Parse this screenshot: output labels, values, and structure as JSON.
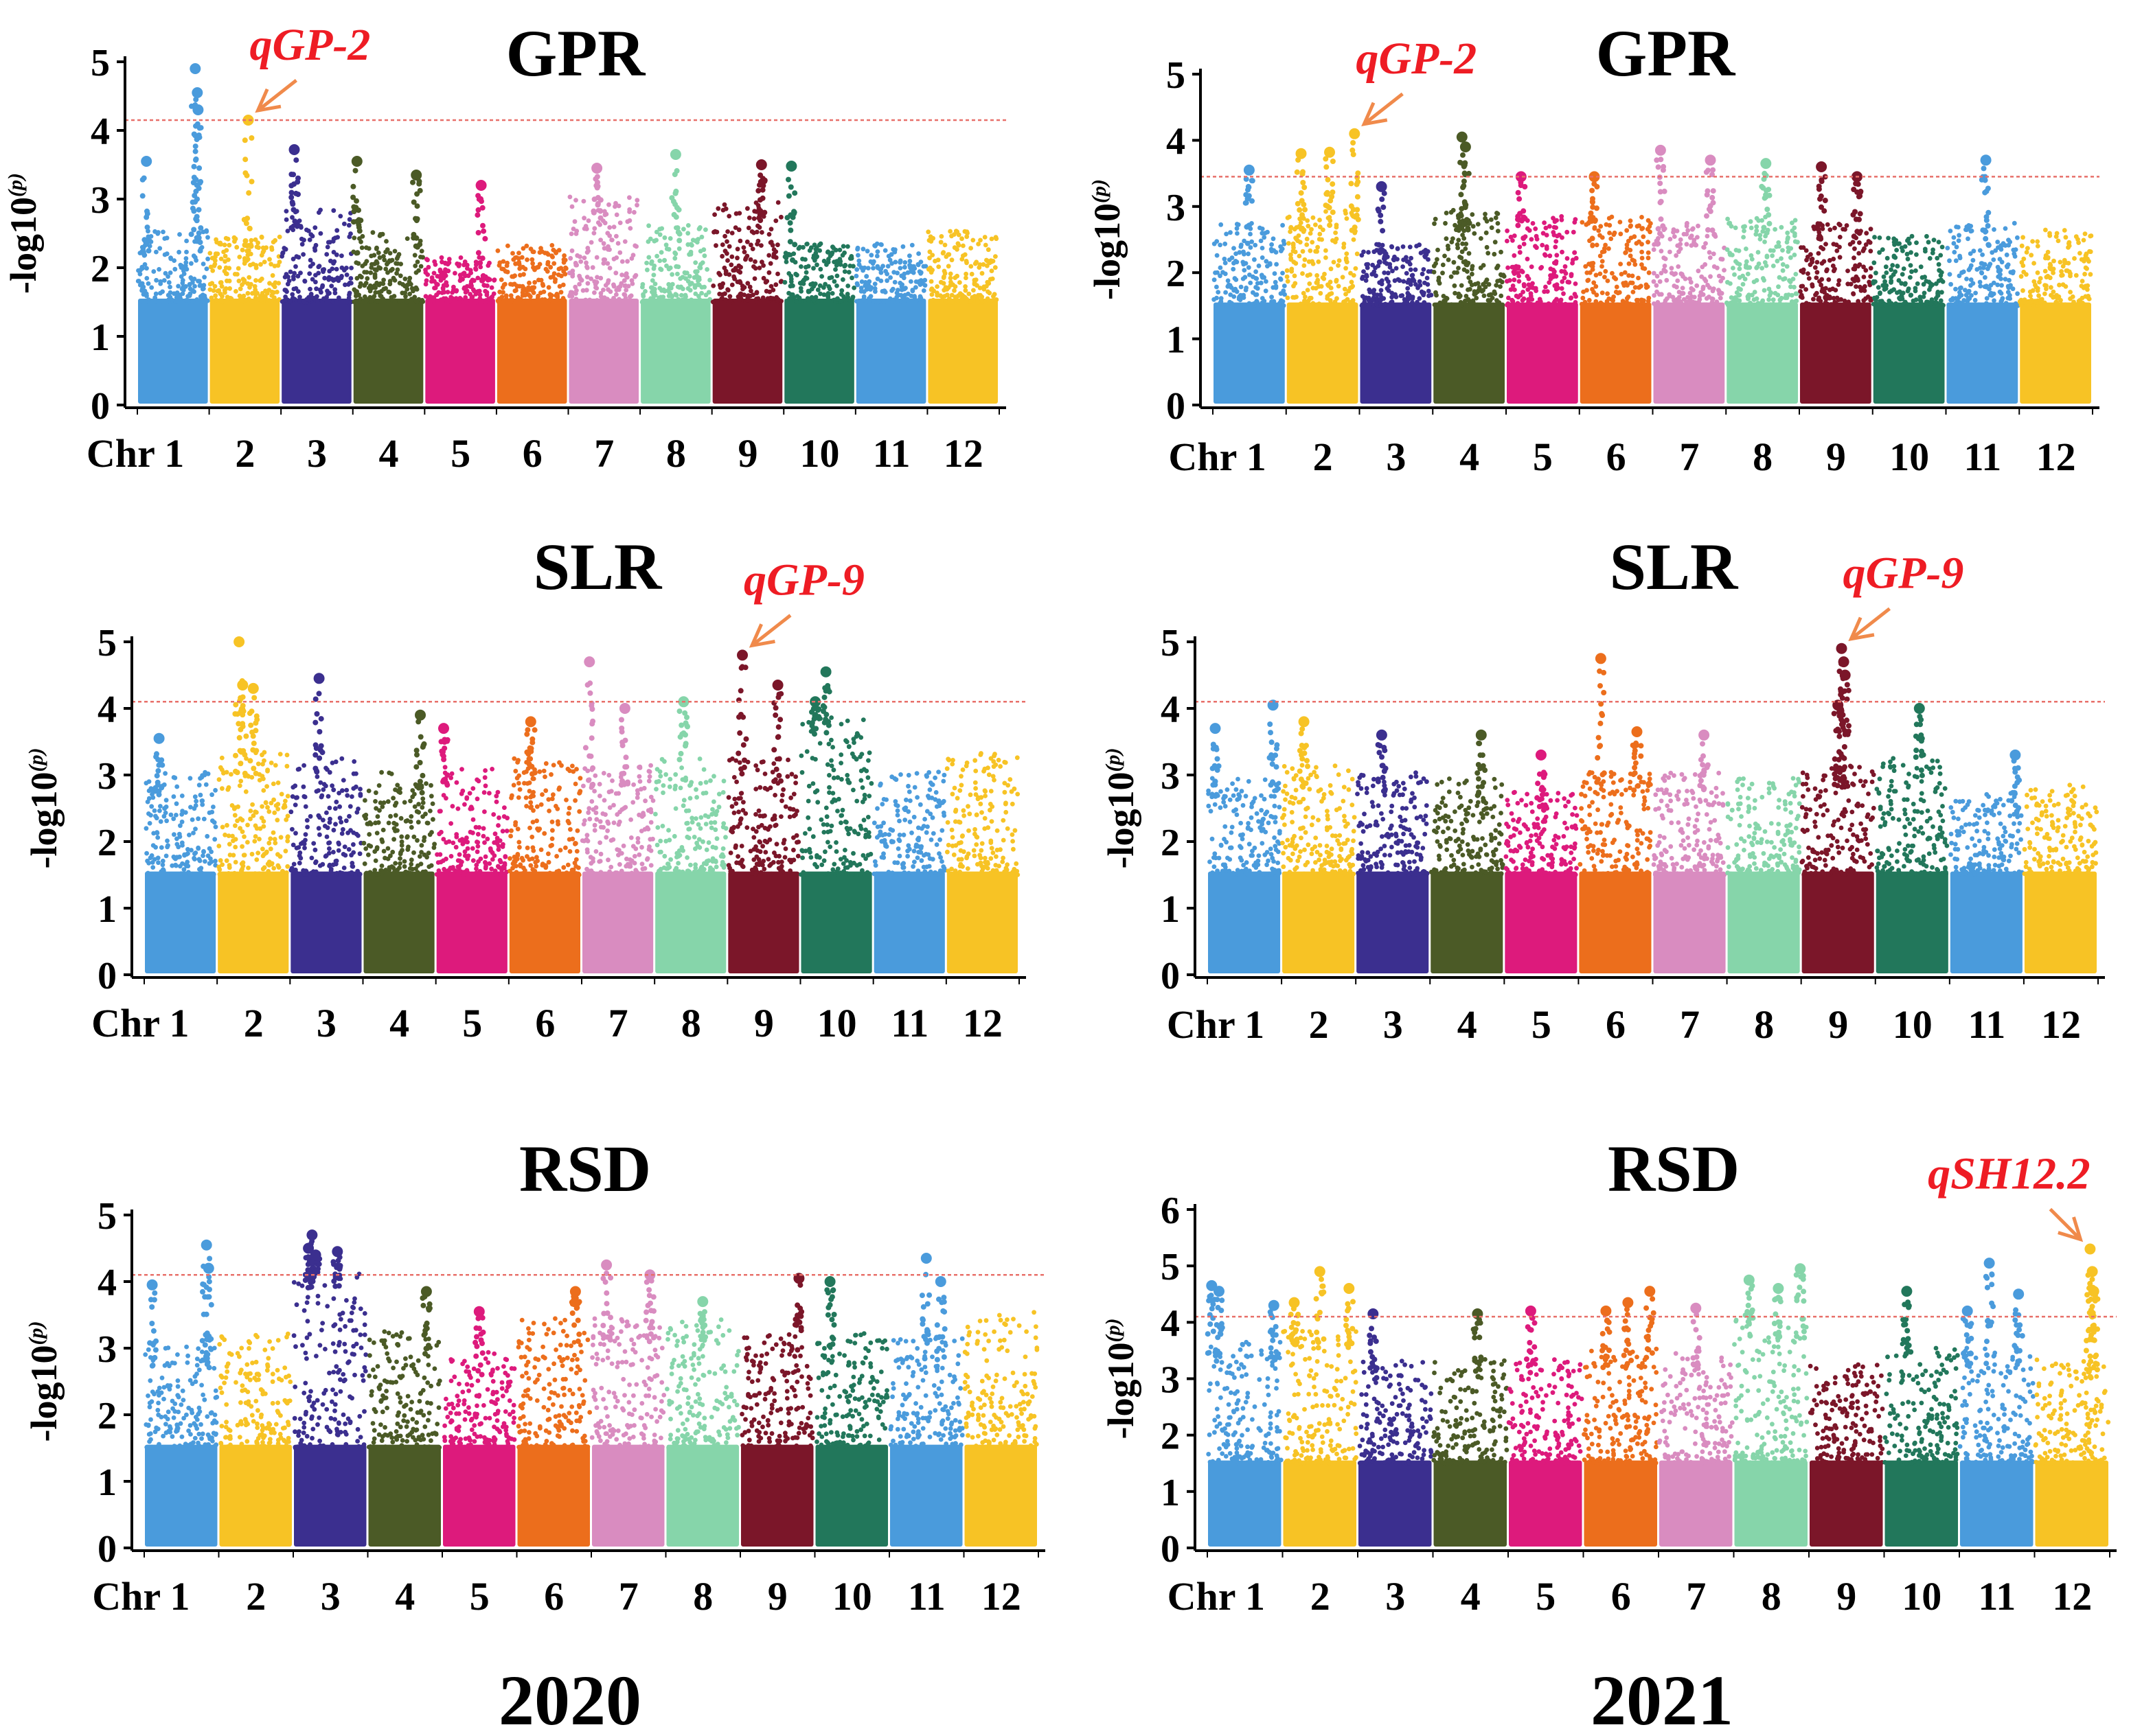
{
  "figure": {
    "years": [
      "2020",
      "2021"
    ]
  },
  "colors": {
    "chromosomes": [
      "#4a9bdc",
      "#f7c325",
      "#3b2f8f",
      "#4b5a26",
      "#dd1a7c",
      "#ec6e1c",
      "#d98cc0",
      "#86d5aa",
      "#7b1629",
      "#22775b",
      "#4a9bdc",
      "#f7c325"
    ],
    "threshold": "#e8706a",
    "arrow": "#f08a4b",
    "qtl_text": "#ee1c24"
  },
  "chart_data": [
    {
      "type": "scatter",
      "subtype": "manhattan",
      "title": "GPR",
      "year": "2020",
      "ylabel": "-log10(p)",
      "ylabel_base": "-log10",
      "ylabel_sup": "(p)",
      "ylim": [
        0,
        5
      ],
      "yticks": [
        "0",
        "1",
        "2",
        "3",
        "4",
        "5"
      ],
      "xlabel_prefix": "Chr",
      "chromosomes": [
        "1",
        "2",
        "3",
        "4",
        "5",
        "6",
        "7",
        "8",
        "9",
        "10",
        "11",
        "12"
      ],
      "base_levels": [
        2.2,
        2.1,
        2.5,
        2.2,
        1.8,
        2.0,
        2.7,
        2.3,
        2.6,
        2.0,
        2.0,
        2.2
      ],
      "threshold": 4.15,
      "peaks": [
        {
          "chr": 1,
          "pos": 0.12,
          "value": 3.55
        },
        {
          "chr": 1,
          "pos": 0.82,
          "value": 4.9
        },
        {
          "chr": 1,
          "pos": 0.85,
          "value": 4.55
        },
        {
          "chr": 1,
          "pos": 0.86,
          "value": 4.3
        },
        {
          "chr": 2,
          "pos": 0.55,
          "value": 4.15
        },
        {
          "chr": 3,
          "pos": 0.18,
          "value": 3.72
        },
        {
          "chr": 4,
          "pos": 0.05,
          "value": 3.55
        },
        {
          "chr": 4,
          "pos": 0.9,
          "value": 3.35
        },
        {
          "chr": 5,
          "pos": 0.8,
          "value": 3.2
        },
        {
          "chr": 7,
          "pos": 0.4,
          "value": 3.45
        },
        {
          "chr": 8,
          "pos": 0.5,
          "value": 3.65
        },
        {
          "chr": 9,
          "pos": 0.7,
          "value": 3.5
        },
        {
          "chr": 10,
          "pos": 0.1,
          "value": 3.48
        }
      ],
      "qtl": {
        "label": "qGP-2",
        "chr": 2,
        "value": 4.15
      }
    },
    {
      "type": "scatter",
      "subtype": "manhattan",
      "title": "GPR",
      "year": "2021",
      "ylabel": "-log10(p)",
      "ylabel_base": "-log10",
      "ylabel_sup": "(p)",
      "ylim": [
        0,
        5
      ],
      "yticks": [
        "0",
        "1",
        "2",
        "3",
        "4",
        "5"
      ],
      "xlabel_prefix": "Chr",
      "chromosomes": [
        "1",
        "2",
        "3",
        "4",
        "5",
        "6",
        "7",
        "8",
        "9",
        "10",
        "11",
        "12"
      ],
      "base_levels": [
        2.4,
        2.6,
        2.1,
        2.6,
        2.5,
        2.5,
        2.4,
        2.5,
        2.4,
        2.2,
        2.4,
        2.3
      ],
      "threshold": 3.45,
      "peaks": [
        {
          "chr": 1,
          "pos": 0.5,
          "value": 3.55
        },
        {
          "chr": 2,
          "pos": 0.2,
          "value": 3.8
        },
        {
          "chr": 2,
          "pos": 0.6,
          "value": 3.82
        },
        {
          "chr": 2,
          "pos": 0.95,
          "value": 4.1
        },
        {
          "chr": 3,
          "pos": 0.3,
          "value": 3.3
        },
        {
          "chr": 4,
          "pos": 0.4,
          "value": 4.05
        },
        {
          "chr": 4,
          "pos": 0.45,
          "value": 3.9
        },
        {
          "chr": 5,
          "pos": 0.2,
          "value": 3.45
        },
        {
          "chr": 6,
          "pos": 0.2,
          "value": 3.45
        },
        {
          "chr": 7,
          "pos": 0.1,
          "value": 3.85
        },
        {
          "chr": 7,
          "pos": 0.8,
          "value": 3.7
        },
        {
          "chr": 8,
          "pos": 0.55,
          "value": 3.65
        },
        {
          "chr": 9,
          "pos": 0.3,
          "value": 3.6
        },
        {
          "chr": 9,
          "pos": 0.8,
          "value": 3.45
        },
        {
          "chr": 11,
          "pos": 0.55,
          "value": 3.7
        }
      ],
      "qtl": {
        "label": "qGP-2",
        "chr": 2,
        "value": 4.1
      }
    },
    {
      "type": "scatter",
      "subtype": "manhattan",
      "title": "SLR",
      "year": "2020",
      "ylabel": "-log10(p)",
      "ylabel_base": "-log10",
      "ylabel_sup": "(p)",
      "ylim": [
        0,
        5
      ],
      "yticks": [
        "0",
        "1",
        "2",
        "3",
        "4",
        "5"
      ],
      "xlabel_prefix": "Chr",
      "chromosomes": [
        "1",
        "2",
        "3",
        "4",
        "5",
        "6",
        "7",
        "8",
        "9",
        "10",
        "11",
        "12"
      ],
      "base_levels": [
        2.7,
        3.0,
        2.9,
        2.7,
        2.8,
        2.9,
        2.8,
        2.9,
        2.9,
        3.6,
        2.7,
        3.0
      ],
      "threshold": 4.1,
      "peaks": [
        {
          "chr": 1,
          "pos": 0.2,
          "value": 3.55
        },
        {
          "chr": 2,
          "pos": 0.3,
          "value": 5.0
        },
        {
          "chr": 2,
          "pos": 0.35,
          "value": 4.35
        },
        {
          "chr": 2,
          "pos": 0.5,
          "value": 4.3
        },
        {
          "chr": 3,
          "pos": 0.4,
          "value": 4.45
        },
        {
          "chr": 4,
          "pos": 0.8,
          "value": 3.9
        },
        {
          "chr": 5,
          "pos": 0.1,
          "value": 3.7
        },
        {
          "chr": 6,
          "pos": 0.3,
          "value": 3.8
        },
        {
          "chr": 7,
          "pos": 0.1,
          "value": 4.7
        },
        {
          "chr": 7,
          "pos": 0.6,
          "value": 4.0
        },
        {
          "chr": 8,
          "pos": 0.4,
          "value": 4.1
        },
        {
          "chr": 9,
          "pos": 0.2,
          "value": 4.8
        },
        {
          "chr": 9,
          "pos": 0.7,
          "value": 4.35
        },
        {
          "chr": 10,
          "pos": 0.35,
          "value": 4.55
        },
        {
          "chr": 10,
          "pos": 0.2,
          "value": 4.1
        }
      ],
      "qtl": {
        "label": "qGP-9",
        "chr": 9,
        "value": 4.8
      }
    },
    {
      "type": "scatter",
      "subtype": "manhattan",
      "title": "SLR",
      "year": "2021",
      "ylabel": "-log10(p)",
      "ylabel_base": "-log10",
      "ylabel_sup": "(p)",
      "ylim": [
        0,
        5
      ],
      "yticks": [
        "0",
        "1",
        "2",
        "3",
        "4",
        "5"
      ],
      "xlabel_prefix": "Chr",
      "chromosomes": [
        "1",
        "2",
        "3",
        "4",
        "5",
        "6",
        "7",
        "8",
        "9",
        "10",
        "11",
        "12"
      ],
      "base_levels": [
        2.6,
        2.8,
        2.7,
        2.6,
        2.4,
        2.7,
        2.7,
        2.6,
        2.8,
        2.9,
        2.4,
        2.5
      ],
      "threshold": 4.1,
      "peaks": [
        {
          "chr": 1,
          "pos": 0.1,
          "value": 3.7
        },
        {
          "chr": 1,
          "pos": 0.9,
          "value": 4.05
        },
        {
          "chr": 2,
          "pos": 0.3,
          "value": 3.8
        },
        {
          "chr": 3,
          "pos": 0.35,
          "value": 3.6
        },
        {
          "chr": 4,
          "pos": 0.7,
          "value": 3.6
        },
        {
          "chr": 5,
          "pos": 0.5,
          "value": 3.3
        },
        {
          "chr": 6,
          "pos": 0.3,
          "value": 4.75
        },
        {
          "chr": 6,
          "pos": 0.8,
          "value": 3.65
        },
        {
          "chr": 7,
          "pos": 0.7,
          "value": 3.6
        },
        {
          "chr": 9,
          "pos": 0.55,
          "value": 4.9
        },
        {
          "chr": 9,
          "pos": 0.58,
          "value": 4.7
        },
        {
          "chr": 9,
          "pos": 0.6,
          "value": 4.5
        },
        {
          "chr": 9,
          "pos": 0.5,
          "value": 4.05
        },
        {
          "chr": 10,
          "pos": 0.6,
          "value": 4.0
        },
        {
          "chr": 11,
          "pos": 0.9,
          "value": 3.3
        }
      ],
      "qtl": {
        "label": "qGP-9",
        "chr": 9,
        "value": 4.9
      }
    },
    {
      "type": "scatter",
      "subtype": "manhattan",
      "title": "RSD",
      "year": "2020",
      "ylabel": "-log10(p)",
      "ylabel_base": "-log10",
      "ylabel_sup": "(p)",
      "ylim": [
        0,
        5
      ],
      "yticks": [
        "0",
        "1",
        "2",
        "3",
        "4",
        "5"
      ],
      "xlabel_prefix": "Chr",
      "chromosomes": [
        "1",
        "2",
        "3",
        "4",
        "5",
        "6",
        "7",
        "8",
        "9",
        "10",
        "11",
        "12"
      ],
      "base_levels": [
        2.7,
        2.9,
        3.9,
        2.9,
        2.6,
        3.1,
        3.1,
        3.1,
        2.9,
        2.9,
        2.8,
        3.2
      ],
      "threshold": 4.1,
      "peaks": [
        {
          "chr": 1,
          "pos": 0.1,
          "value": 3.95
        },
        {
          "chr": 1,
          "pos": 0.85,
          "value": 4.55
        },
        {
          "chr": 1,
          "pos": 0.88,
          "value": 4.2
        },
        {
          "chr": 3,
          "pos": 0.2,
          "value": 4.5
        },
        {
          "chr": 3,
          "pos": 0.25,
          "value": 4.7
        },
        {
          "chr": 3,
          "pos": 0.3,
          "value": 4.4
        },
        {
          "chr": 3,
          "pos": 0.6,
          "value": 4.45
        },
        {
          "chr": 4,
          "pos": 0.8,
          "value": 3.85
        },
        {
          "chr": 5,
          "pos": 0.5,
          "value": 3.55
        },
        {
          "chr": 6,
          "pos": 0.8,
          "value": 3.85
        },
        {
          "chr": 7,
          "pos": 0.2,
          "value": 4.25
        },
        {
          "chr": 7,
          "pos": 0.8,
          "value": 4.1
        },
        {
          "chr": 8,
          "pos": 0.5,
          "value": 3.7
        },
        {
          "chr": 9,
          "pos": 0.8,
          "value": 4.05
        },
        {
          "chr": 10,
          "pos": 0.2,
          "value": 4.0
        },
        {
          "chr": 11,
          "pos": 0.5,
          "value": 4.35
        },
        {
          "chr": 11,
          "pos": 0.7,
          "value": 4.0
        }
      ],
      "qtl": null
    },
    {
      "type": "scatter",
      "subtype": "manhattan",
      "title": "RSD",
      "year": "2021",
      "ylabel": "-log10(p)",
      "ylabel_base": "-log10",
      "ylabel_sup": "(p)",
      "ylim": [
        0,
        6
      ],
      "yticks": [
        "0",
        "1",
        "2",
        "3",
        "4",
        "5",
        "6"
      ],
      "xlabel_prefix": "Chr",
      "chromosomes": [
        "1",
        "2",
        "3",
        "4",
        "5",
        "6",
        "7",
        "8",
        "9",
        "10",
        "11",
        "12"
      ],
      "base_levels": [
        3.3,
        3.5,
        3.0,
        3.0,
        3.1,
        3.2,
        3.1,
        3.7,
        2.9,
        3.3,
        3.2,
        3.0
      ],
      "threshold": 4.1,
      "peaks": [
        {
          "chr": 1,
          "pos": 0.05,
          "value": 4.65
        },
        {
          "chr": 1,
          "pos": 0.15,
          "value": 4.55
        },
        {
          "chr": 1,
          "pos": 0.9,
          "value": 4.3
        },
        {
          "chr": 2,
          "pos": 0.15,
          "value": 4.35
        },
        {
          "chr": 2,
          "pos": 0.5,
          "value": 4.9
        },
        {
          "chr": 2,
          "pos": 0.9,
          "value": 4.6
        },
        {
          "chr": 3,
          "pos": 0.2,
          "value": 4.15
        },
        {
          "chr": 4,
          "pos": 0.6,
          "value": 4.15
        },
        {
          "chr": 5,
          "pos": 0.3,
          "value": 4.2
        },
        {
          "chr": 6,
          "pos": 0.3,
          "value": 4.2
        },
        {
          "chr": 6,
          "pos": 0.6,
          "value": 4.35
        },
        {
          "chr": 6,
          "pos": 0.9,
          "value": 4.55
        },
        {
          "chr": 7,
          "pos": 0.5,
          "value": 4.25
        },
        {
          "chr": 8,
          "pos": 0.2,
          "value": 4.75
        },
        {
          "chr": 8,
          "pos": 0.6,
          "value": 4.6
        },
        {
          "chr": 8,
          "pos": 0.9,
          "value": 4.95
        },
        {
          "chr": 10,
          "pos": 0.3,
          "value": 4.55
        },
        {
          "chr": 11,
          "pos": 0.1,
          "value": 4.2
        },
        {
          "chr": 11,
          "pos": 0.4,
          "value": 5.05
        },
        {
          "chr": 11,
          "pos": 0.8,
          "value": 4.5
        },
        {
          "chr": 12,
          "pos": 0.75,
          "value": 5.3
        },
        {
          "chr": 12,
          "pos": 0.78,
          "value": 4.9
        },
        {
          "chr": 12,
          "pos": 0.8,
          "value": 4.55
        }
      ],
      "qtl": {
        "label": "qSH12.2",
        "chr": 12,
        "value": 5.3
      }
    }
  ]
}
